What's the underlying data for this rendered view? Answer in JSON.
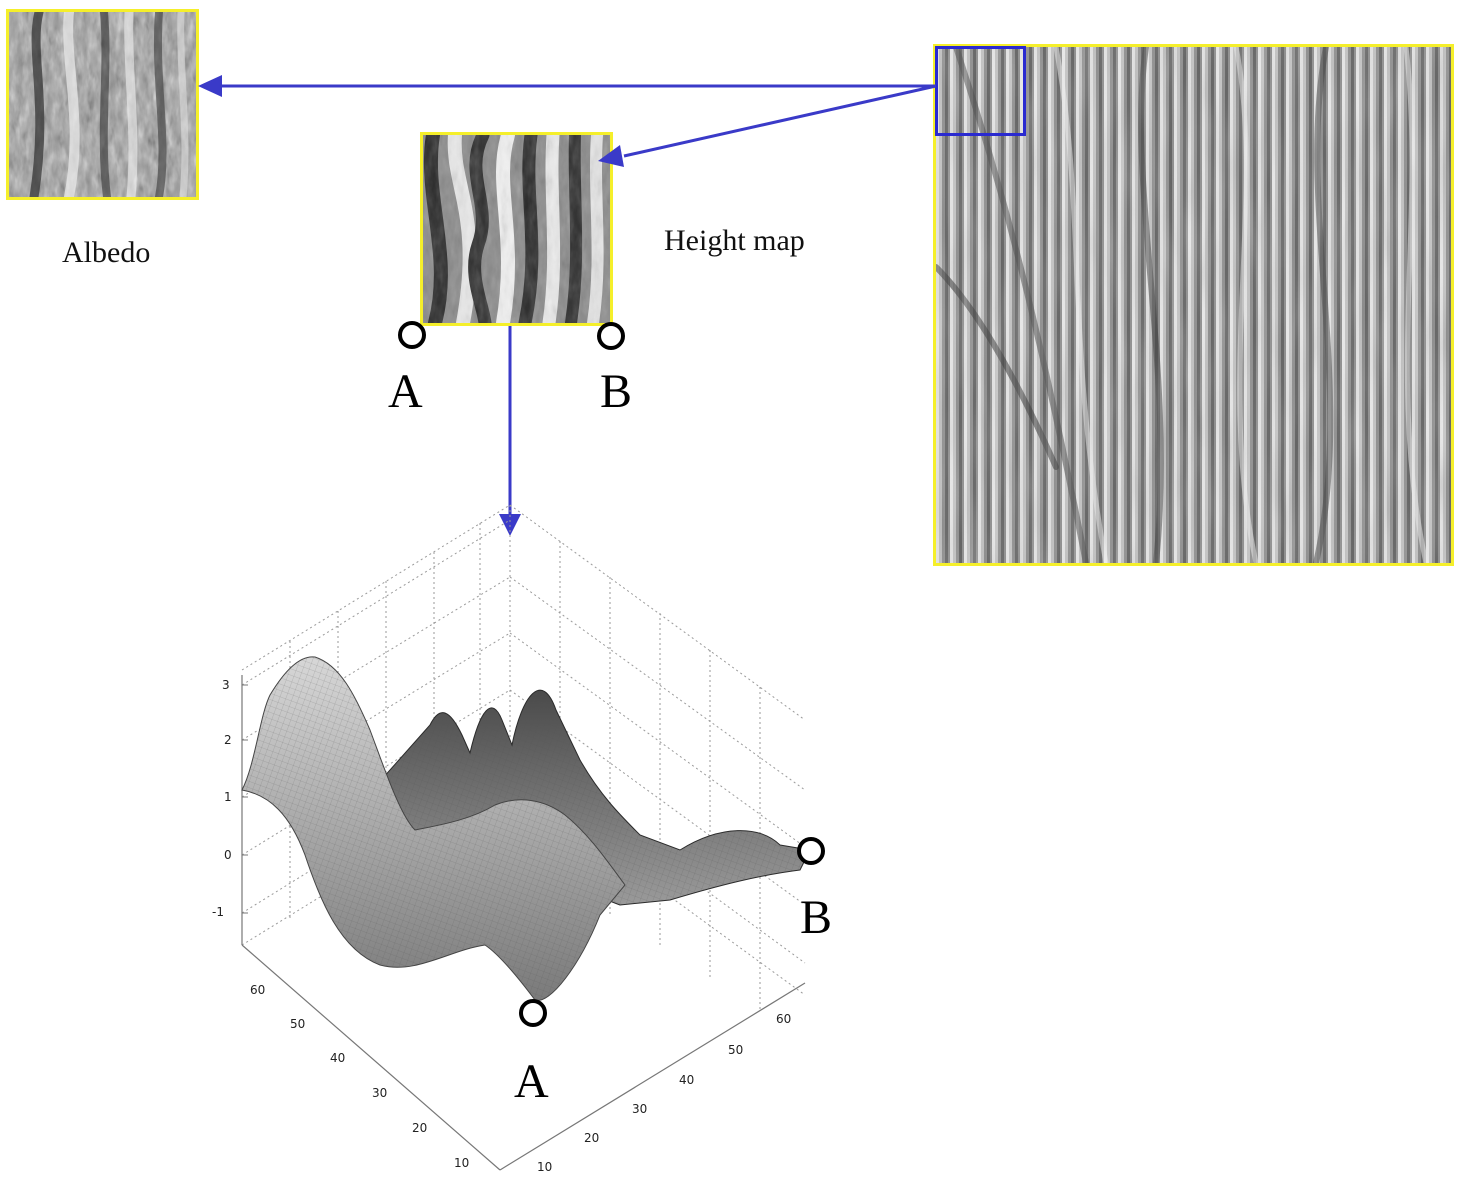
{
  "labels": {
    "albedo": "Albedo",
    "height_map": "Height map",
    "point_a": "A",
    "point_b": "B"
  },
  "plot_axes": {
    "z_ticks": [
      "3",
      "2",
      "1",
      "0",
      "-1"
    ],
    "y_ticks": [
      "60",
      "50",
      "40",
      "30",
      "20",
      "10"
    ],
    "x_ticks": [
      "60",
      "50",
      "40",
      "30",
      "20",
      "10"
    ]
  },
  "colors": {
    "frame": "#f5ef2a",
    "arrow": "#3a3ac8",
    "selection_box": "#2a2ad0"
  }
}
